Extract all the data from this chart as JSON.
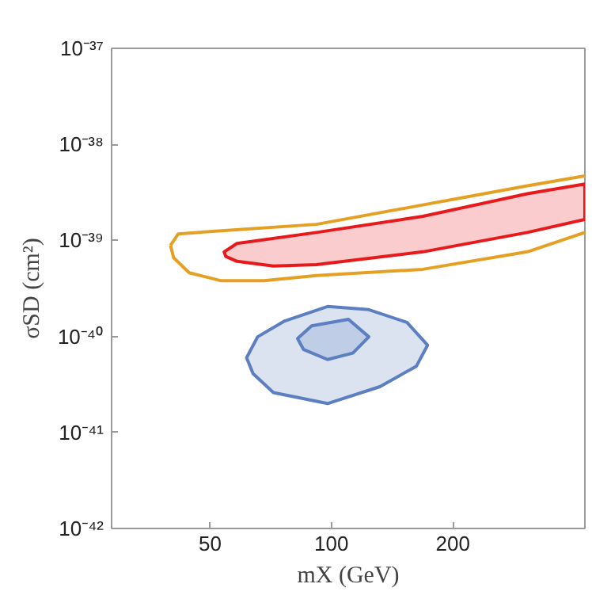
{
  "chart_data": {
    "type": "area",
    "xlabel": "mX (GeV)",
    "ylabel": "σSD (cm²)",
    "log": "xy",
    "grid": false,
    "xlim": [
      28.5,
      425
    ],
    "xticks": [
      50,
      100,
      200
    ],
    "ylim": [
      1e-42,
      1e-37
    ],
    "yticks": [
      {
        "value": 1e-42,
        "label": "10⁻⁴²"
      },
      {
        "value": 1e-41,
        "label": "10⁻⁴¹"
      },
      {
        "value": 1e-40,
        "label": "10⁻⁴⁰"
      },
      {
        "value": 1e-39,
        "label": "10⁻³⁹"
      },
      {
        "value": 1e-38,
        "label": "10⁻³⁸"
      },
      {
        "value": 1e-37,
        "label": "10⁻³⁷"
      }
    ],
    "series": [
      {
        "type": "line",
        "color": "#e5a024",
        "x": [
          39.9,
          41.7,
          53.3,
          91.8,
          168.5,
          306,
          425
        ],
        "values": [
          8.9e-40,
          1.17e-39,
          1.26e-39,
          1.47e-39,
          2.34e-39,
          3.7e-39,
          4.7e-39
        ]
      },
      {
        "type": "line",
        "color": "#e5a024",
        "x": [
          39.9,
          40.6,
          44.4,
          53.3,
          68,
          91.8,
          168.5,
          306,
          425
        ],
        "values": [
          8.9e-40,
          6.6e-40,
          4.6e-40,
          3.8e-40,
          3.8e-40,
          4.3e-40,
          5e-40,
          7.6e-40,
          1.21e-39
        ]
      },
      {
        "color": "#e8191b",
        "x": [
          54.2,
          58.3,
          91.8,
          168.5,
          306,
          425,
          425,
          306,
          168.5,
          91.8,
          71.8,
          58.3,
          54.7,
          54.2
        ],
        "values": [
          7.6e-40,
          9.3e-40,
          1.21e-39,
          1.78e-39,
          3.06e-39,
          3.86e-39,
          1.65e-39,
          1.21e-39,
          7.6e-40,
          5.6e-40,
          5.4e-40,
          6.05e-40,
          6.8e-40,
          7.6e-40
        ]
      },
      {
        "color": "#5b7fc0",
        "x": [
          61.6,
          65.6,
          76.6,
          97.8,
          123.8,
          153.9,
          173.1,
          162.4,
          131.9,
          97.8,
          71.8,
          63.9,
          61.6
        ],
        "values": [
          6e-41,
          9.9e-41,
          1.45e-40,
          2.05e-40,
          1.9e-40,
          1.4e-40,
          8.1e-41,
          4.9e-41,
          3e-41,
          2e-41,
          2.6e-41,
          4.1e-41,
          6e-41
        ]
      },
      {
        "color": "#5b7fc0",
        "x": [
          82.4,
          89.3,
          110.2,
          123.8,
          113.0,
          97.8,
          85.3,
          82.4
        ],
        "values": [
          9.5e-41,
          1.29e-40,
          1.51e-40,
          9.9e-41,
          6.7e-41,
          5.75e-41,
          7.3e-41,
          9.5e-41
        ]
      }
    ]
  }
}
